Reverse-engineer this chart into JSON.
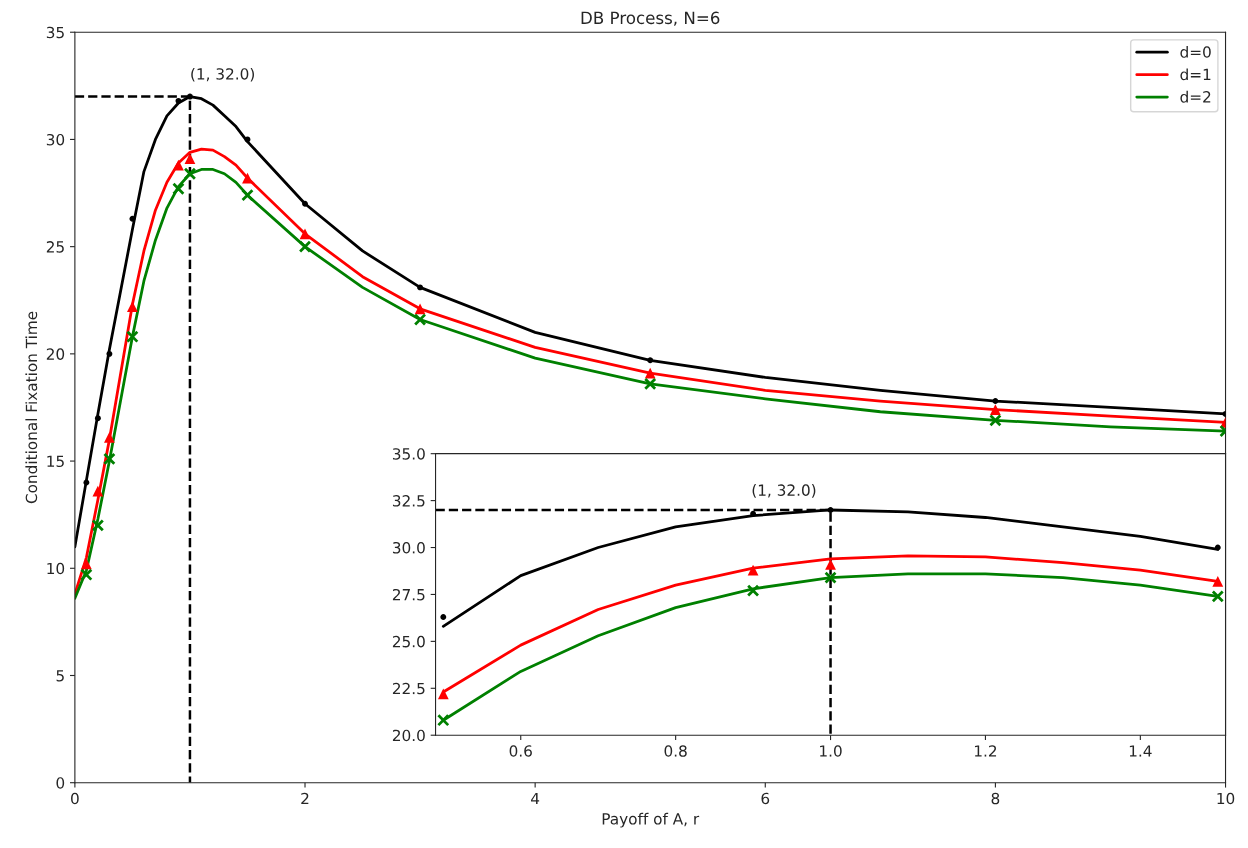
{
  "chart_data": [
    {
      "type": "line",
      "title": "DB Process, N=6",
      "xlabel": "Payoff of A, r",
      "ylabel": "Conditional Fixation Time",
      "xlim": [
        0,
        10
      ],
      "ylim": [
        0,
        35
      ],
      "xticks": [
        0,
        2,
        4,
        6,
        8,
        10
      ],
      "yticks": [
        0,
        5,
        10,
        15,
        20,
        25,
        30,
        35
      ],
      "legend": "top right",
      "annotations": [
        {
          "text": "(1, 32.0)",
          "x": 1,
          "y": 32
        }
      ],
      "series": [
        {
          "line_style": "dashed",
          "color": "#000000",
          "x": [
            0,
            1,
            1
          ],
          "values": [
            32,
            32,
            0
          ]
        },
        {
          "name": "d=0",
          "color": "#000000",
          "x": [
            0,
            0.1,
            0.2,
            0.3,
            0.5,
            0.6,
            0.7,
            0.8,
            0.9,
            1.0,
            1.1,
            1.2,
            1.3,
            1.4,
            1.5,
            2,
            2.5,
            3,
            4,
            5,
            6,
            7,
            8,
            9,
            10
          ],
          "values": [
            11.0,
            14.1,
            17.2,
            20.2,
            25.8,
            28.5,
            30.0,
            31.1,
            31.7,
            32.0,
            31.9,
            31.6,
            31.1,
            30.6,
            29.9,
            27.0,
            24.8,
            23.1,
            21.0,
            19.7,
            18.9,
            18.3,
            17.8,
            17.5,
            17.2
          ]
        },
        {
          "name": "d=1",
          "color": "#ff0000",
          "x": [
            0,
            0.1,
            0.2,
            0.3,
            0.5,
            0.6,
            0.7,
            0.8,
            0.9,
            1.0,
            1.1,
            1.2,
            1.3,
            1.4,
            1.5,
            2,
            2.5,
            3,
            4,
            5,
            6,
            7,
            8,
            9,
            10
          ],
          "values": [
            8.8,
            10.5,
            13.2,
            16.0,
            22.3,
            24.8,
            26.7,
            28.0,
            28.9,
            29.4,
            29.55,
            29.5,
            29.2,
            28.8,
            28.2,
            25.6,
            23.6,
            22.1,
            20.3,
            19.1,
            18.3,
            17.8,
            17.4,
            17.1,
            16.8
          ]
        },
        {
          "name": "d=2",
          "color": "#008000",
          "x": [
            0,
            0.1,
            0.2,
            0.3,
            0.5,
            0.6,
            0.7,
            0.8,
            0.9,
            1.0,
            1.1,
            1.2,
            1.3,
            1.4,
            1.5,
            2,
            2.5,
            3,
            4,
            5,
            6,
            7,
            8,
            9,
            10
          ],
          "values": [
            8.6,
            9.9,
            12.3,
            15.0,
            20.8,
            23.4,
            25.3,
            26.8,
            27.8,
            28.4,
            28.6,
            28.6,
            28.4,
            28.0,
            27.4,
            25.0,
            23.1,
            21.6,
            19.8,
            18.6,
            17.9,
            17.3,
            16.9,
            16.6,
            16.4
          ]
        },
        {
          "type": "scatter",
          "marker": "circle",
          "color": "#000000",
          "x": [
            0.1,
            0.2,
            0.3,
            0.5,
            0.9,
            1.0,
            1.5,
            2,
            3,
            5,
            8,
            10
          ],
          "values": [
            14.0,
            17.0,
            20.0,
            26.3,
            31.8,
            32.0,
            30.0,
            27.0,
            23.1,
            19.7,
            17.8,
            17.2
          ]
        },
        {
          "type": "scatter",
          "marker": "triangle",
          "color": "#ff0000",
          "x": [
            0.1,
            0.2,
            0.3,
            0.5,
            0.9,
            1.0,
            1.5,
            2,
            3,
            5,
            8,
            10
          ],
          "values": [
            10.2,
            13.6,
            16.1,
            22.2,
            28.8,
            29.1,
            28.2,
            25.6,
            22.1,
            19.1,
            17.4,
            16.8
          ]
        },
        {
          "type": "scatter",
          "marker": "cross",
          "color": "#008000",
          "x": [
            0.1,
            0.2,
            0.3,
            0.5,
            0.9,
            1.0,
            1.5,
            2,
            3,
            5,
            8,
            10
          ],
          "values": [
            9.7,
            12.0,
            15.1,
            20.8,
            27.7,
            28.4,
            27.4,
            25.0,
            21.6,
            18.6,
            16.9,
            16.4
          ]
        }
      ]
    },
    {
      "type": "line",
      "xlim": [
        0.49,
        1.51
      ],
      "ylim": [
        20,
        35
      ],
      "xticks": [
        0.6,
        0.8,
        {
          "value": 1.0,
          "label": "1.0"
        },
        1.2,
        1.4
      ],
      "yticks": [
        {
          "value": 20,
          "label": "20.0"
        },
        22.5,
        {
          "value": 25,
          "label": "25.0"
        },
        27.5,
        {
          "value": 30,
          "label": "30.0"
        },
        32.5,
        {
          "value": 35,
          "label": "35.0"
        }
      ],
      "annotations": [
        {
          "text": "(1, 32.0)",
          "x": 1,
          "y": 32
        }
      ],
      "series": [
        {
          "line_style": "dashed",
          "color": "#000000",
          "x": [
            0.49,
            1,
            1
          ],
          "values": [
            32,
            32,
            20
          ]
        },
        {
          "color": "#000000",
          "x": [
            0.5,
            0.6,
            0.7,
            0.8,
            0.9,
            1.0,
            1.1,
            1.2,
            1.3,
            1.4,
            1.5
          ],
          "values": [
            25.8,
            28.5,
            30.0,
            31.1,
            31.7,
            32.0,
            31.9,
            31.6,
            31.1,
            30.6,
            29.9
          ]
        },
        {
          "color": "#ff0000",
          "x": [
            0.5,
            0.6,
            0.7,
            0.8,
            0.9,
            1.0,
            1.1,
            1.2,
            1.3,
            1.4,
            1.5
          ],
          "values": [
            22.3,
            24.8,
            26.7,
            28.0,
            28.9,
            29.4,
            29.55,
            29.5,
            29.2,
            28.8,
            28.2
          ]
        },
        {
          "color": "#008000",
          "x": [
            0.5,
            0.6,
            0.7,
            0.8,
            0.9,
            1.0,
            1.1,
            1.2,
            1.3,
            1.4,
            1.5
          ],
          "values": [
            20.8,
            23.4,
            25.3,
            26.8,
            27.8,
            28.4,
            28.6,
            28.6,
            28.4,
            28.0,
            27.4
          ]
        },
        {
          "type": "scatter",
          "marker": "circle",
          "color": "#000000",
          "x": [
            0.5,
            0.9,
            1.0,
            1.5
          ],
          "values": [
            26.3,
            31.8,
            32.0,
            30.0
          ]
        },
        {
          "type": "scatter",
          "marker": "triangle",
          "color": "#ff0000",
          "x": [
            0.5,
            0.9,
            1.0,
            1.5
          ],
          "values": [
            22.2,
            28.8,
            29.1,
            28.2
          ]
        },
        {
          "type": "scatter",
          "marker": "cross",
          "color": "#008000",
          "x": [
            0.5,
            0.9,
            1.0,
            1.5
          ],
          "values": [
            20.8,
            27.7,
            28.4,
            27.4
          ]
        }
      ]
    }
  ]
}
